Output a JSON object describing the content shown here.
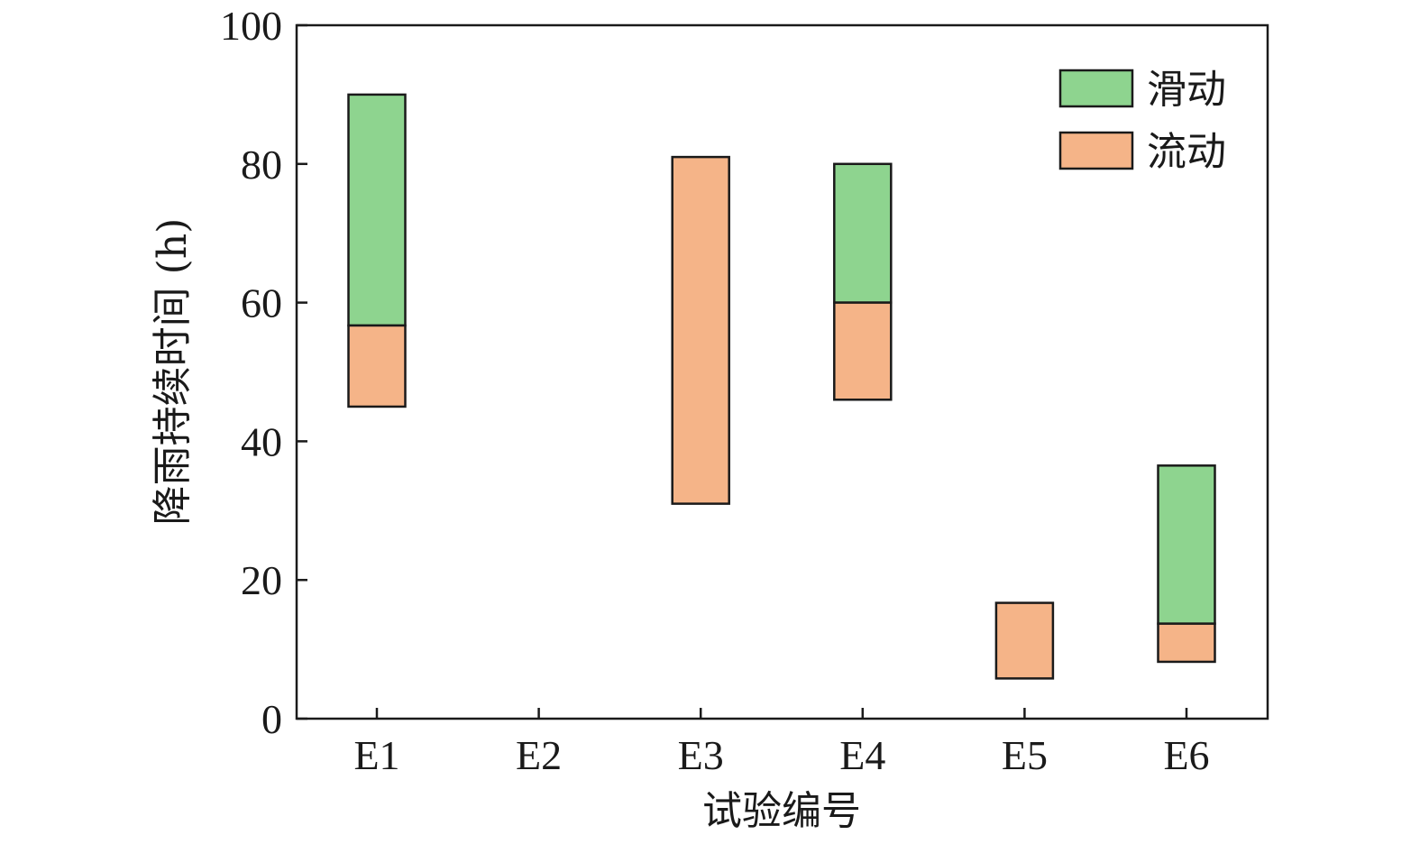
{
  "chart_data": {
    "type": "bar",
    "subtype": "floating-stacked-range",
    "categories": [
      "E1",
      "E2",
      "E3",
      "E4",
      "E5",
      "E6"
    ],
    "xlabel": "试验编号",
    "ylabel": "降雨持续时间 (h)",
    "ylim": [
      0,
      100
    ],
    "yticks": [
      0,
      20,
      40,
      60,
      80,
      100
    ],
    "grid": false,
    "legend_position": "top-right",
    "series": [
      {
        "name": "滑动",
        "color": "#8ed48f",
        "ranges": [
          [
            56.7,
            90
          ],
          null,
          null,
          [
            60,
            80
          ],
          null,
          [
            13.7,
            36.5
          ]
        ]
      },
      {
        "name": "流动",
        "color": "#f5b488",
        "ranges": [
          [
            45,
            56.7
          ],
          null,
          [
            31,
            81
          ],
          [
            46,
            60
          ],
          [
            5.8,
            16.7
          ],
          [
            8.2,
            13.7
          ]
        ]
      }
    ]
  }
}
